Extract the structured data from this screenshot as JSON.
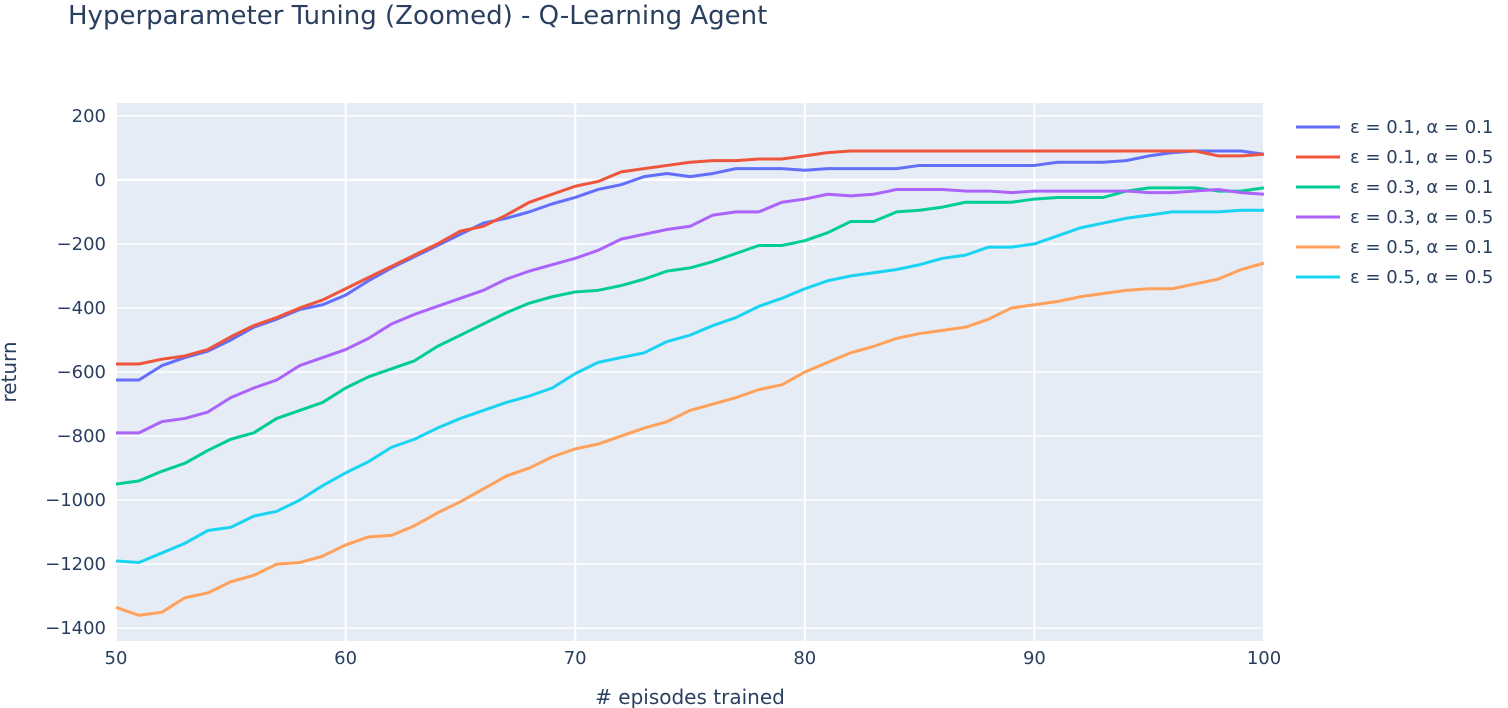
{
  "chart_data": {
    "type": "line",
    "title": "Hyperparameter Tuning (Zoomed) - Q-Learning Agent",
    "xlabel": "# episodes trained",
    "ylabel": "return",
    "xlim": [
      50,
      100
    ],
    "ylim": [
      -1440,
      240
    ],
    "xticks": [
      50,
      60,
      70,
      80,
      90,
      100
    ],
    "yticks": [
      200,
      0,
      -200,
      -400,
      -600,
      -800,
      -1000,
      -1200,
      -1400
    ],
    "ytick_labels": [
      "200",
      "0",
      "−200",
      "−400",
      "−600",
      "−800",
      "−1000",
      "−1200",
      "−1400"
    ],
    "grid": true,
    "legend_position": "right",
    "plot_background": "#e5ecf6",
    "x": [
      50,
      51,
      52,
      53,
      54,
      55,
      56,
      57,
      58,
      59,
      60,
      61,
      62,
      63,
      64,
      65,
      66,
      67,
      68,
      69,
      70,
      71,
      72,
      73,
      74,
      75,
      76,
      77,
      78,
      79,
      80,
      81,
      82,
      83,
      84,
      85,
      86,
      87,
      88,
      89,
      90,
      91,
      92,
      93,
      94,
      95,
      96,
      97,
      98,
      99,
      100
    ],
    "series": [
      {
        "name": "ε = 0.1, α = 0.1",
        "color": "#636efa",
        "values": [
          -625,
          -625,
          -580,
          -555,
          -535,
          -500,
          -460,
          -435,
          -405,
          -390,
          -360,
          -315,
          -275,
          -240,
          -205,
          -170,
          -135,
          -120,
          -100,
          -75,
          -55,
          -30,
          -15,
          10,
          20,
          10,
          20,
          35,
          35,
          35,
          30,
          35,
          35,
          35,
          35,
          45,
          45,
          45,
          45,
          45,
          45,
          55,
          55,
          55,
          60,
          75,
          85,
          90,
          90,
          90,
          80
        ]
      },
      {
        "name": "ε = 0.1, α = 0.5",
        "color": "#ef553b",
        "values": [
          -575,
          -575,
          -560,
          -550,
          -530,
          -490,
          -455,
          -430,
          -400,
          -375,
          -340,
          -305,
          -270,
          -235,
          -200,
          -160,
          -145,
          -110,
          -70,
          -45,
          -20,
          -5,
          25,
          35,
          45,
          55,
          60,
          60,
          65,
          65,
          75,
          85,
          90,
          90,
          90,
          90,
          90,
          90,
          90,
          90,
          90,
          90,
          90,
          90,
          90,
          90,
          90,
          90,
          75,
          75,
          80
        ]
      },
      {
        "name": "ε = 0.3, α = 0.1",
        "color": "#00cc96",
        "values": [
          -950,
          -940,
          -910,
          -885,
          -845,
          -810,
          -790,
          -745,
          -720,
          -695,
          -650,
          -615,
          -590,
          -565,
          -520,
          -485,
          -450,
          -415,
          -385,
          -365,
          -350,
          -345,
          -330,
          -310,
          -285,
          -275,
          -255,
          -230,
          -205,
          -205,
          -190,
          -165,
          -130,
          -130,
          -100,
          -95,
          -85,
          -70,
          -70,
          -70,
          -60,
          -55,
          -55,
          -55,
          -35,
          -25,
          -25,
          -25,
          -35,
          -35,
          -25
        ]
      },
      {
        "name": "ε = 0.3, α = 0.5",
        "color": "#ab63fa",
        "values": [
          -790,
          -790,
          -755,
          -745,
          -725,
          -680,
          -650,
          -625,
          -580,
          -555,
          -530,
          -495,
          -450,
          -420,
          -395,
          -370,
          -345,
          -310,
          -285,
          -265,
          -245,
          -220,
          -185,
          -170,
          -155,
          -145,
          -110,
          -100,
          -100,
          -70,
          -60,
          -45,
          -50,
          -45,
          -30,
          -30,
          -30,
          -35,
          -35,
          -40,
          -35,
          -35,
          -35,
          -35,
          -35,
          -40,
          -40,
          -35,
          -30,
          -40,
          -45
        ]
      },
      {
        "name": "ε = 0.5, α = 0.1",
        "color": "#ffa15a",
        "values": [
          -1335,
          -1360,
          -1350,
          -1305,
          -1290,
          -1255,
          -1235,
          -1200,
          -1195,
          -1175,
          -1140,
          -1115,
          -1110,
          -1080,
          -1040,
          -1005,
          -965,
          -925,
          -900,
          -865,
          -840,
          -825,
          -800,
          -775,
          -755,
          -720,
          -700,
          -680,
          -655,
          -640,
          -600,
          -570,
          -540,
          -520,
          -495,
          -480,
          -470,
          -460,
          -435,
          -400,
          -390,
          -380,
          -365,
          -355,
          -345,
          -340,
          -340,
          -325,
          -310,
          -280,
          -260
        ]
      },
      {
        "name": "ε = 0.5, α = 0.5",
        "color": "#19d3f3",
        "values": [
          -1190,
          -1195,
          -1165,
          -1135,
          -1095,
          -1085,
          -1050,
          -1035,
          -1000,
          -955,
          -915,
          -880,
          -835,
          -810,
          -775,
          -745,
          -720,
          -695,
          -675,
          -650,
          -605,
          -570,
          -555,
          -540,
          -505,
          -485,
          -455,
          -430,
          -395,
          -370,
          -340,
          -315,
          -300,
          -290,
          -280,
          -265,
          -245,
          -235,
          -210,
          -210,
          -200,
          -175,
          -150,
          -135,
          -120,
          -110,
          -100,
          -100,
          -100,
          -95,
          -95
        ]
      }
    ]
  }
}
